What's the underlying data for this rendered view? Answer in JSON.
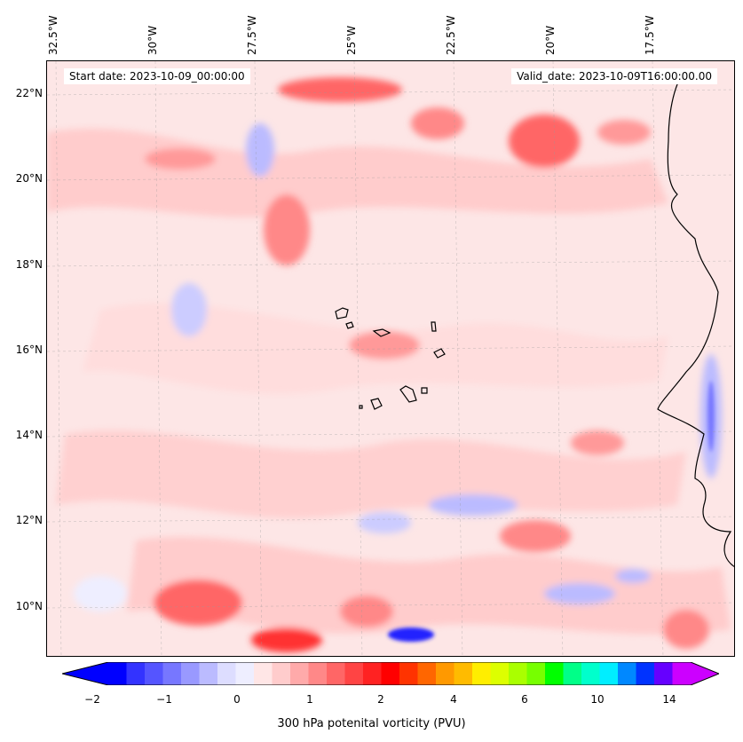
{
  "map": {
    "start_date": "Start date: 2023-10-09_00:00:00",
    "valid_date": "Valid_date: 2023-10-09T16:00:00.00",
    "lon_labels": [
      "32.5°W",
      "30°W",
      "27.5°W",
      "25°W",
      "22.5°W",
      "20°W",
      "17.5°W"
    ],
    "lat_labels": [
      "22°N",
      "20°N",
      "18°N",
      "16°N",
      "14°N",
      "12°N",
      "10°N"
    ],
    "colorbar": {
      "label": "300 hPa potenital vorticity (PVU)",
      "ticks": [
        "−2",
        "−1",
        "0",
        "1",
        "2",
        "4",
        "6",
        "10",
        "14"
      ],
      "colors": [
        "#0000ff",
        "#3333ff",
        "#5555ff",
        "#7777ff",
        "#9999ff",
        "#bbbbff",
        "#ddddff",
        "#eeeeff",
        "#ffe6e6",
        "#ffcccc",
        "#ffaaaa",
        "#ff8888",
        "#ff6666",
        "#ff4444",
        "#ff2222",
        "#ff0000",
        "#ff3300",
        "#ff6600",
        "#ff9900",
        "#ffbb00",
        "#ffee00",
        "#ddff00",
        "#aaff00",
        "#77ff00",
        "#00ff00",
        "#00ff88",
        "#00ffcc",
        "#00eeff",
        "#0088ff",
        "#0033ff",
        "#6600ff",
        "#cc00ff"
      ]
    }
  }
}
